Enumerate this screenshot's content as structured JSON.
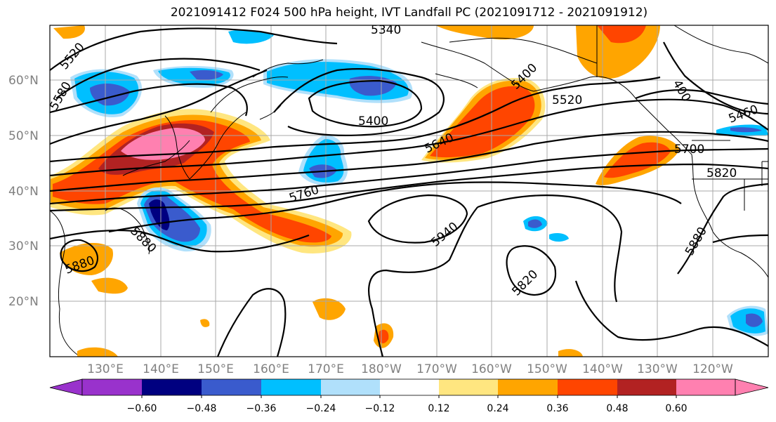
{
  "title": "2021091412 F024 500 hPa height, IVT Landfall PC (2021091712 - 2021091912)",
  "map": {
    "lat_labels": [
      "60°N",
      "50°N",
      "40°N",
      "30°N",
      "20°N"
    ],
    "lon_labels": [
      "130°E",
      "140°E",
      "150°E",
      "160°E",
      "170°E",
      "180°W",
      "170°W",
      "160°W",
      "150°W",
      "140°W",
      "130°W",
      "120°W"
    ],
    "contour_labels": [
      "5520",
      "5340",
      "5580",
      "5400",
      "5400",
      "5520",
      "400",
      "5460",
      "5640",
      "5700",
      "5820",
      "5760",
      "5880",
      "5880",
      "5940",
      "5820",
      "5880"
    ]
  },
  "colorbar": {
    "ticks": [
      "−0.60",
      "−0.48",
      "−0.36",
      "−0.24",
      "−0.12",
      "0.12",
      "0.24",
      "0.36",
      "0.48",
      "0.60"
    ],
    "colors": [
      "#9932cc",
      "#000080",
      "#3a5bcd",
      "#00bfff",
      "#b0e0fb",
      "#ffffff",
      "#ffe680",
      "#ffa500",
      "#ff4500",
      "#b22222",
      "#ff80b0",
      "#ff80b0"
    ]
  }
}
